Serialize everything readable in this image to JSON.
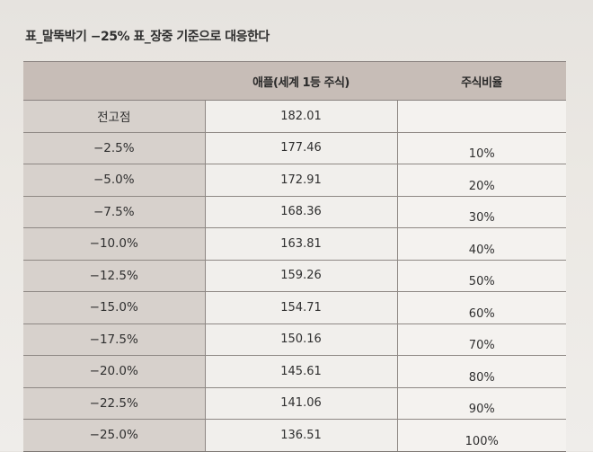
{
  "caption": "표_말뚝박기 −25% 표_장중 기준으로 대응한다",
  "table": {
    "headers": [
      "",
      "애플(세계 1등 주식)",
      "주식비율"
    ],
    "rows": [
      {
        "label": "전고점",
        "price": "182.01",
        "ratio": ""
      },
      {
        "label": "−2.5%",
        "price": "177.46",
        "ratio": "10%"
      },
      {
        "label": "−5.0%",
        "price": "172.91",
        "ratio": "20%"
      },
      {
        "label": "−7.5%",
        "price": "168.36",
        "ratio": "30%"
      },
      {
        "label": "−10.0%",
        "price": "163.81",
        "ratio": "40%"
      },
      {
        "label": "−12.5%",
        "price": "159.26",
        "ratio": "50%"
      },
      {
        "label": "−15.0%",
        "price": "154.71",
        "ratio": "60%"
      },
      {
        "label": "−17.5%",
        "price": "150.16",
        "ratio": "70%"
      },
      {
        "label": "−20.0%",
        "price": "145.61",
        "ratio": "80%"
      },
      {
        "label": "−22.5%",
        "price": "141.06",
        "ratio": "90%"
      },
      {
        "label": "−25.0%",
        "price": "136.51",
        "ratio": "100%"
      }
    ]
  }
}
